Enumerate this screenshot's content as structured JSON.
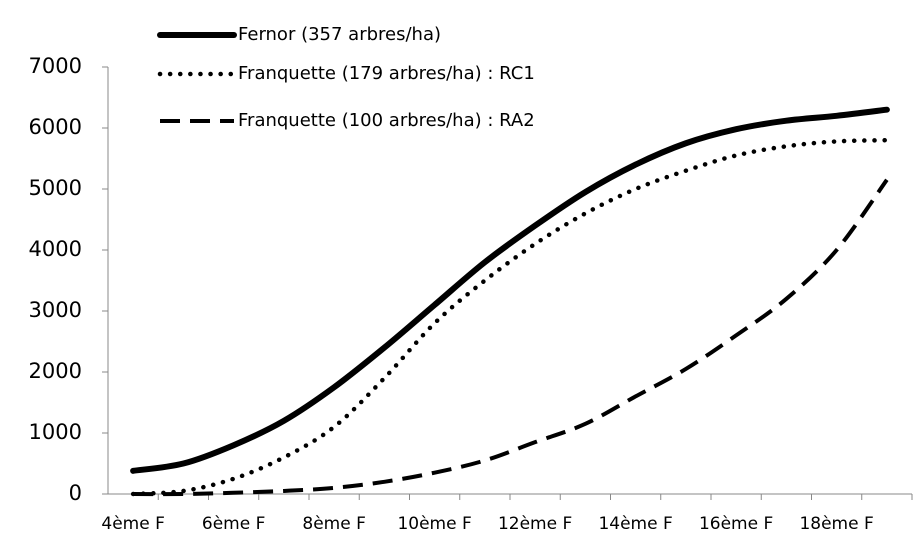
{
  "chart_data": {
    "type": "line",
    "categories": [
      "4ème F",
      null,
      "6ème F",
      null,
      "8ème F",
      null,
      "10ème F",
      null,
      "12ème F",
      null,
      "14ème F",
      null,
      "16ème F",
      null,
      "18ème F",
      null
    ],
    "series": [
      {
        "name": "Fernor (357 arbres/ha)",
        "color": "#000000",
        "dash": "solid",
        "values": [
          380,
          500,
          800,
          1200,
          1750,
          2400,
          3100,
          3800,
          4400,
          4950,
          5400,
          5750,
          5980,
          6120,
          6200,
          6300
        ]
      },
      {
        "name": "Franquette (179 arbres/ha) : RC1",
        "color": "#000000",
        "dash": "dotted",
        "values": [
          0,
          50,
          250,
          600,
          1100,
          1900,
          2800,
          3500,
          4100,
          4600,
          5000,
          5300,
          5550,
          5700,
          5780,
          5800
        ]
      },
      {
        "name": "Franquette (100 arbres/ha) : RA2",
        "color": "#000000",
        "dash": "dashed",
        "values": [
          0,
          0,
          20,
          50,
          100,
          200,
          350,
          550,
          850,
          1150,
          1600,
          2050,
          2600,
          3200,
          4000,
          5150
        ]
      }
    ],
    "ylim": [
      0,
      7000
    ],
    "yticks": [
      0,
      1000,
      2000,
      3000,
      4000,
      5000,
      6000,
      7000
    ],
    "grid": false,
    "legend": "top-left"
  }
}
